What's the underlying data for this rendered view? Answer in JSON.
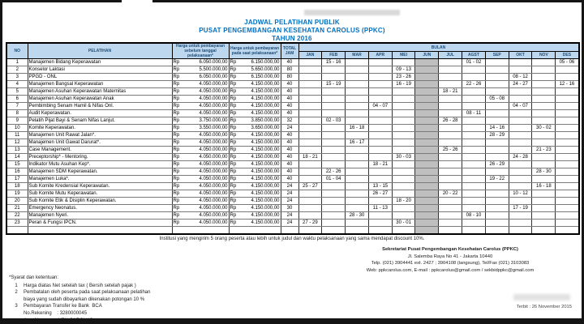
{
  "title": {
    "line1": "JADWAL PELATIHAN PUBLIK",
    "line2": "PUSAT PENGEMBANGAN KESEHATAN CAROLUS (PPKC)",
    "line3": "TAHUN 2016"
  },
  "table": {
    "headers": {
      "no": "NO",
      "pelatihan": "PELATIHAN",
      "price_before": "Harga untuk pembayaran sebelum tanggal pelaksanaan*",
      "price_onsite": "Harga untuk pembayaran pada saat pelaksanaan*",
      "total_jam": "TOTAL JAM",
      "bulan": "BULAN",
      "currency": "Rp",
      "months": [
        "JAN",
        "FEB",
        "MAR",
        "APR",
        "MEI",
        "JUN",
        "JUL",
        "AGST",
        "SEP",
        "OKT",
        "NOV",
        "DES"
      ]
    },
    "highlight_color": "#bfbfbf",
    "red_text_color": "#e00000",
    "header_bg_color": "#bdd7ee",
    "title_color": "#0070c0",
    "rows": [
      {
        "no": "1",
        "name": "Manajemen Bidang Keperawatan",
        "price1": "6.050.000,00",
        "price2": "6.150.000,00",
        "jam": "40",
        "red": false,
        "months": [
          "",
          "15 - 16",
          "",
          "",
          "",
          "",
          "",
          "01 - 02",
          "",
          "",
          "",
          "05 - 06"
        ]
      },
      {
        "no": "2",
        "name": "Konselor Laktasi",
        "price1": "5.500.000,00",
        "price2": "5.650.000,00",
        "jam": "80",
        "red": false,
        "months": [
          "",
          "",
          "",
          "",
          "09 - 13",
          "",
          "",
          "",
          "",
          "",
          "",
          ""
        ]
      },
      {
        "no": "3",
        "name": "PPGD - ONL",
        "price1": "6.050.000,00",
        "price2": "6.150.000,00",
        "jam": "80",
        "red": false,
        "months": [
          "",
          "",
          "",
          "",
          "23 - 26",
          "",
          "",
          "",
          "",
          "08 - 12",
          "",
          ""
        ]
      },
      {
        "no": "4",
        "name": "Manajemen Bangsal Keperawatan",
        "price1": "4.050.000,00",
        "price2": "4.150.000,00",
        "jam": "40",
        "red": false,
        "months": [
          "",
          "15 - 19",
          "",
          "",
          "16 - 19",
          "",
          "",
          "22 - 26",
          "",
          "24 - 27",
          "",
          "12 - 16"
        ]
      },
      {
        "no": "5",
        "name": "Manajemen Asuhan Keperawatan Maternitas",
        "price1": "4.050.000,00",
        "price2": "4.150.000,00",
        "jam": "40",
        "red": false,
        "months": [
          "",
          "",
          "",
          "",
          "",
          "",
          "18 - 21",
          "",
          "",
          "",
          "",
          ""
        ]
      },
      {
        "no": "6",
        "name": "Manajemen Asuhan Keperawatan Anak",
        "price1": "4.050.000,00",
        "price2": "4.150.000,00",
        "jam": "40",
        "red": false,
        "months": [
          "",
          "",
          "",
          "",
          "",
          "",
          "",
          "",
          "05 - 08",
          "",
          "",
          ""
        ]
      },
      {
        "no": "7",
        "name": "Pembimbing Senam Hamil & Nifas Onl.",
        "price1": "4.050.000,00",
        "price2": "4.150.000,00",
        "jam": "40",
        "red": false,
        "months": [
          "",
          "",
          "",
          "04 - 07",
          "",
          "",
          "",
          "",
          "",
          "04 - 07",
          "",
          ""
        ]
      },
      {
        "no": "8",
        "name": "Audit Keperawatan.",
        "price1": "4.050.000,00",
        "price2": "4.150.000,00",
        "jam": "40",
        "red": false,
        "months": [
          "",
          "",
          "",
          "",
          "",
          "",
          "",
          "08 - 11",
          "",
          "",
          "",
          ""
        ]
      },
      {
        "no": "9",
        "name": "Pelatih Pijat Bayi & Senam Nifas Lanjut.",
        "price1": "3.750.000,00",
        "price2": "3.850.000,00",
        "jam": "32",
        "red": false,
        "months": [
          "",
          "02 - 03",
          "",
          "",
          "",
          "",
          "26 - 28",
          "",
          "",
          "",
          "",
          ""
        ]
      },
      {
        "no": "10",
        "name": "Komite Keperawatan.",
        "price1": "3.550.000,00",
        "price2": "3.650.000,00",
        "jam": "24",
        "red": false,
        "months": [
          "",
          "",
          "16 - 18",
          "",
          "",
          "",
          "",
          "",
          "14 - 16",
          "",
          "30 - 02",
          ""
        ]
      },
      {
        "no": "11",
        "name": "Manajemen Unit Rawat Jalan*.",
        "price1": "4.050.000,00",
        "price2": "4.150.000,00",
        "jam": "40",
        "red": true,
        "months": [
          "",
          "",
          "",
          "",
          "",
          "",
          "",
          "",
          "28 - 29",
          "",
          "",
          ""
        ]
      },
      {
        "no": "12",
        "name": "Manajemen Unit Gawat Darurat*.",
        "price1": "4.050.000,00",
        "price2": "4.150.000,00",
        "jam": "40",
        "red": true,
        "months": [
          "",
          "",
          "16 - 17",
          "",
          "",
          "",
          "",
          "",
          "",
          "",
          "",
          ""
        ]
      },
      {
        "no": "13",
        "name": "Case Management.",
        "price1": "4.050.000,00",
        "price2": "4.150.000,00",
        "jam": "40",
        "red": true,
        "months": [
          "",
          "",
          "",
          "",
          "",
          "",
          "25 - 26",
          "",
          "",
          "",
          "21 - 23",
          ""
        ]
      },
      {
        "no": "14",
        "name": "Preceptorship* - Mentoring.",
        "price1": "4.050.000,00",
        "price2": "4.150.000,00",
        "jam": "40",
        "red": true,
        "months": [
          "18 - 21",
          "",
          "",
          "",
          "30 - 03",
          "",
          "",
          "",
          "",
          "24 - 28",
          "",
          ""
        ]
      },
      {
        "no": "15",
        "name": "Indikator Mutu Asuhan Kep*.",
        "price1": "4.050.000,00",
        "price2": "4.150.000,00",
        "jam": "40",
        "red": true,
        "months": [
          "",
          "",
          "",
          "18 - 21",
          "",
          "",
          "",
          "",
          "26 - 29",
          "",
          "",
          ""
        ]
      },
      {
        "no": "16",
        "name": "Manajemen SDM Keperawatan.",
        "price1": "4.050.000,00",
        "price2": "4.150.000,00",
        "jam": "40",
        "red": true,
        "months": [
          "",
          "22 - 26",
          "",
          "",
          "",
          "",
          "",
          "",
          "",
          "",
          "28 - 30",
          ""
        ]
      },
      {
        "no": "17",
        "name": "Manajemen Luka*.",
        "price1": "4.050.000,00",
        "price2": "4.150.000,00",
        "jam": "40",
        "red": true,
        "months": [
          "",
          "01 - 04",
          "",
          "",
          "",
          "",
          "",
          "",
          "19 - 22",
          "",
          "",
          ""
        ]
      },
      {
        "no": "18",
        "name": "Sub Komite Kredensial Keperawatan.",
        "price1": "4.050.000,00",
        "price2": "4.150.000,00",
        "jam": "24",
        "red": true,
        "months": [
          "25 - 27",
          "",
          "",
          "13 - 15",
          "",
          "",
          "",
          "",
          "",
          "",
          "16 - 18",
          ""
        ]
      },
      {
        "no": "19",
        "name": "Sub Komite Mutu Keperawatan.",
        "price1": "4.050.000,00",
        "price2": "4.150.000,00",
        "jam": "24",
        "red": true,
        "months": [
          "",
          "",
          "",
          "26 - 27",
          "",
          "",
          "20 - 22",
          "",
          "",
          "10 - 12",
          "",
          ""
        ]
      },
      {
        "no": "20",
        "name": "Sub Komite Etik & Disiplin Keperawatan.",
        "price1": "4.050.000,00",
        "price2": "4.150.000,00",
        "jam": "24",
        "red": true,
        "months": [
          "",
          "",
          "",
          "",
          "18 - 20",
          "",
          "",
          "",
          "",
          "",
          "",
          ""
        ]
      },
      {
        "no": "21",
        "name": "Emergency Neonatus.",
        "price1": "4.050.000,00",
        "price2": "4.150.000,00",
        "jam": "30",
        "red": true,
        "months": [
          "",
          "",
          "",
          "11 - 13",
          "",
          "",
          "",
          "",
          "",
          "17 - 19",
          "",
          ""
        ]
      },
      {
        "no": "22",
        "name": "Manajemen Nyeri.",
        "price1": "4.050.000,00",
        "price2": "4.150.000,00",
        "jam": "24",
        "red": true,
        "months": [
          "",
          "",
          "28 - 30",
          "",
          "",
          "",
          "",
          "08 - 10",
          "",
          "",
          "",
          ""
        ]
      },
      {
        "no": "23",
        "name": "Peran & Fungsi IPCN.",
        "price1": "4.050.000,00",
        "price2": "4.150.000,00",
        "jam": "24",
        "red": true,
        "months": [
          "27 - 29",
          "",
          "",
          "",
          "30 - 01",
          "",
          "",
          "",
          "",
          "",
          "",
          ""
        ]
      }
    ]
  },
  "discount_note": "Institusi yang mengirim 5 orang peserta atau lebih untuk judul dan waktu pelaksanaan yang sama  mendapat discount 10%.",
  "contact": {
    "lines": [
      "Sekretariat Pusat Pengembangan Kesehatan Carolus (PPKC)",
      "Jl. Salemba Raya No 41 - Jakarta 10440",
      "Telp. (021) 3904441 ext. 2427 ; 3904108 (langsung), Tel/Fax (021) 3103083",
      "Web: ppkcarolus.com, E-mail : ppkcarolus@gmail.com / sekbidppkc@gmail.com"
    ]
  },
  "terms": {
    "title": "*Syarat dan ketentuan:",
    "items": [
      {
        "num": "1",
        "lines": [
          "Harga diatas Net setelah tax ( Bersih setelah pajak )"
        ]
      },
      {
        "num": "2",
        "lines": [
          "Pembatalan oleh peserta pada saat pelaksanaan pelatihan",
          "biaya yang sudah dibayarkan dikenakan potongan 10 %"
        ]
      },
      {
        "num": "3",
        "lines": [
          "Pembayaran Transfer ke Bank  BCA",
          "No.Rekening    : 3280000045",
          "Atas Nama      : YPK CAROLUS"
        ]
      }
    ]
  },
  "issued": "Terbit : 26 November 2015"
}
